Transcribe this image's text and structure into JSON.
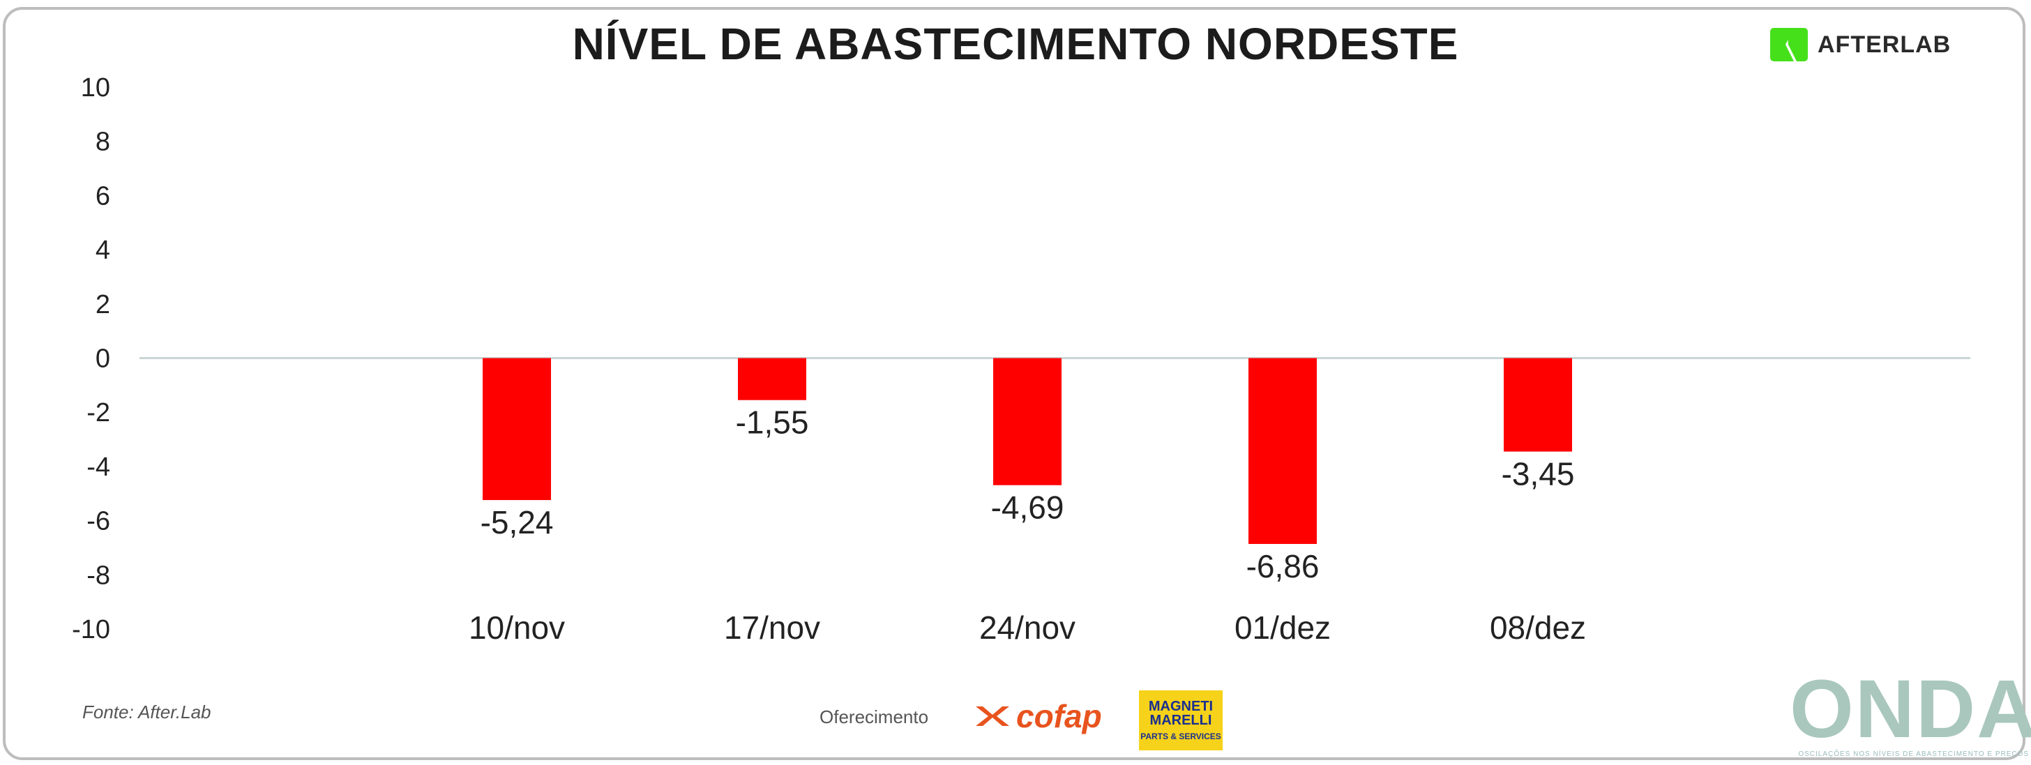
{
  "title": "NÍVEL DE ABASTECIMENTO NORDESTE",
  "brand": {
    "name": "AFTERLAB",
    "icon": "afterlab-logo",
    "color": "#45e01a"
  },
  "footer": {
    "source": "Fonte: After.Lab",
    "oferecimento": "Oferecimento",
    "sponsors": [
      {
        "name": "cofap",
        "icon": "cofap-logo",
        "color": "#e8531e"
      },
      {
        "name": "MAGNETI MARELLI",
        "subtitle": "PARTS & SERVICES",
        "icon": "magneti-marelli-logo",
        "color": "#f6d21a"
      }
    ],
    "onda": {
      "name": "ONDA",
      "tagline": "OSCILAÇÕES NOS NÍVEIS DE ABASTECIMENTO E PREÇOS"
    }
  },
  "chart_data": {
    "type": "bar",
    "title": "NÍVEL DE ABASTECIMENTO NORDESTE",
    "categories": [
      "10/nov",
      "17/nov",
      "24/nov",
      "01/dez",
      "08/dez"
    ],
    "values": [
      -5.24,
      -1.55,
      -4.69,
      -6.86,
      -3.45
    ],
    "value_labels": [
      "-5,24",
      "-1,55",
      "-4,69",
      "-6,86",
      "-3,45"
    ],
    "ylim": [
      -10,
      10
    ],
    "yticks": [
      -10,
      -8,
      -6,
      -4,
      -2,
      0,
      2,
      4,
      6,
      8,
      10
    ],
    "bar_color": "#ff0000",
    "grid": false,
    "legend": "none"
  }
}
